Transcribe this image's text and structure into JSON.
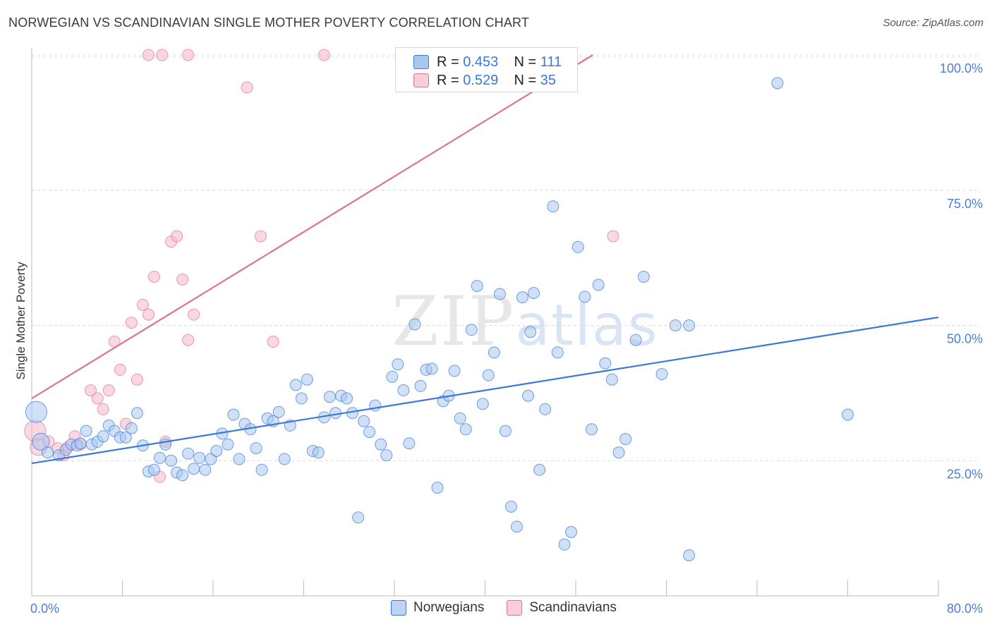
{
  "header": {
    "title": "NORWEGIAN VS SCANDINAVIAN SINGLE MOTHER POVERTY CORRELATION CHART",
    "source": "Source: ZipAtlas.com"
  },
  "colors": {
    "blue": "#3c78d8",
    "blue_fill": "#a9c6ef",
    "pink": "#e07097",
    "pink_fill": "#f5b8cb",
    "grid": "#dcdcdc",
    "tick_text": "#4a7fd4"
  },
  "legend": {
    "rows": [
      {
        "r_label": "R =",
        "r_value": "0.453",
        "n_label": "N =",
        "n_value": "111"
      },
      {
        "r_label": "R =",
        "r_value": "0.529",
        "n_label": "N =",
        "n_value": "35"
      }
    ],
    "bottom": [
      "Norwegians",
      "Scandinavians"
    ]
  },
  "watermark": {
    "zip": "ZIP",
    "atlas": "atlas"
  },
  "chart_data": {
    "type": "scatter",
    "title": "NORWEGIAN VS SCANDINAVIAN SINGLE MOTHER POVERTY CORRELATION CHART",
    "xlabel": "",
    "ylabel": "Single Mother Poverty",
    "xlim": [
      0,
      80
    ],
    "ylim": [
      0,
      100
    ],
    "x_tick_labels": [
      "0.0%",
      "80.0%"
    ],
    "y_tick_labels": [
      "100.0%",
      "75.0%",
      "50.0%",
      "25.0%"
    ],
    "y_tick_values": [
      100,
      75,
      50,
      25
    ],
    "series": [
      {
        "name": "Norwegians",
        "r": 0.453,
        "n": 111,
        "trend": {
          "x0": 0,
          "y0": 24.5,
          "x1": 80,
          "y1": 51.5
        },
        "points": [
          [
            0.4,
            34,
            "L"
          ],
          [
            0.8,
            28.5,
            "M"
          ],
          [
            1.4,
            26.5,
            "S"
          ],
          [
            2.4,
            26,
            "S"
          ],
          [
            3.0,
            27,
            "S"
          ],
          [
            3.5,
            28,
            "S"
          ],
          [
            4.0,
            27.8,
            "S"
          ],
          [
            4.3,
            28.2,
            "S"
          ],
          [
            4.8,
            30.5,
            "S"
          ],
          [
            5.3,
            28,
            "S"
          ],
          [
            5.8,
            28.5,
            "S"
          ],
          [
            6.3,
            29.5,
            "S"
          ],
          [
            6.8,
            31.5,
            "S"
          ],
          [
            7.3,
            30.5,
            "S"
          ],
          [
            7.8,
            29.3,
            "S"
          ],
          [
            8.3,
            29.3,
            "S"
          ],
          [
            8.8,
            31,
            "S"
          ],
          [
            9.3,
            33.8,
            "S"
          ],
          [
            9.8,
            27.8,
            "S"
          ],
          [
            10.3,
            23,
            "S"
          ],
          [
            10.8,
            23.3,
            "S"
          ],
          [
            11.3,
            25.5,
            "S"
          ],
          [
            11.8,
            28,
            "S"
          ],
          [
            12.3,
            25,
            "S"
          ],
          [
            12.8,
            22.8,
            "S"
          ],
          [
            13.3,
            22.3,
            "S"
          ],
          [
            13.8,
            26.3,
            "S"
          ],
          [
            14.3,
            23.5,
            "S"
          ],
          [
            14.8,
            25.5,
            "S"
          ],
          [
            15.3,
            23.3,
            "S"
          ],
          [
            15.8,
            25.3,
            "S"
          ],
          [
            16.3,
            26.8,
            "S"
          ],
          [
            16.8,
            30,
            "S"
          ],
          [
            17.3,
            28,
            "S"
          ],
          [
            17.8,
            33.5,
            "S"
          ],
          [
            18.3,
            25.3,
            "S"
          ],
          [
            18.8,
            31.8,
            "S"
          ],
          [
            19.3,
            30.8,
            "S"
          ],
          [
            19.8,
            27.3,
            "S"
          ],
          [
            20.3,
            23.3,
            "S"
          ],
          [
            20.8,
            32.8,
            "S"
          ],
          [
            21.3,
            32.3,
            "S"
          ],
          [
            21.8,
            34,
            "S"
          ],
          [
            22.3,
            25.3,
            "S"
          ],
          [
            22.8,
            31.5,
            "S"
          ],
          [
            23.3,
            39,
            "S"
          ],
          [
            23.8,
            36.5,
            "S"
          ],
          [
            24.3,
            40,
            "S"
          ],
          [
            24.8,
            26.8,
            "S"
          ],
          [
            25.3,
            26.5,
            "S"
          ],
          [
            25.8,
            33,
            "S"
          ],
          [
            26.3,
            36.8,
            "S"
          ],
          [
            26.8,
            33.8,
            "S"
          ],
          [
            27.3,
            37,
            "S"
          ],
          [
            27.8,
            36.5,
            "S"
          ],
          [
            28.3,
            33.8,
            "S"
          ],
          [
            28.8,
            14.5,
            "S"
          ],
          [
            29.3,
            32.3,
            "S"
          ],
          [
            29.8,
            30.3,
            "S"
          ],
          [
            30.3,
            35.2,
            "S"
          ],
          [
            30.8,
            28,
            "S"
          ],
          [
            31.3,
            26,
            "S"
          ],
          [
            31.8,
            40.5,
            "S"
          ],
          [
            32.3,
            42.8,
            "S"
          ],
          [
            32.8,
            38,
            "S"
          ],
          [
            33.3,
            28.2,
            "S"
          ],
          [
            33.8,
            50.2,
            "S"
          ],
          [
            34.3,
            38.8,
            "S"
          ],
          [
            34.8,
            41.8,
            "S"
          ],
          [
            35.3,
            42,
            "S"
          ],
          [
            35.8,
            20,
            "S"
          ],
          [
            36.3,
            36,
            "S"
          ],
          [
            36.8,
            37,
            "S"
          ],
          [
            37.3,
            41.6,
            "S"
          ],
          [
            37.8,
            32.8,
            "S"
          ],
          [
            38.3,
            30.8,
            "S"
          ],
          [
            38.8,
            49.2,
            "S"
          ],
          [
            39.3,
            57.3,
            "S"
          ],
          [
            39.8,
            35.5,
            "S"
          ],
          [
            40.3,
            40.8,
            "S"
          ],
          [
            40.8,
            45,
            "S"
          ],
          [
            41.3,
            55.8,
            "S"
          ],
          [
            41.8,
            30.5,
            "S"
          ],
          [
            42.3,
            16.5,
            "S"
          ],
          [
            42.8,
            12.8,
            "S"
          ],
          [
            43.3,
            55.2,
            "S"
          ],
          [
            43.8,
            37,
            "S"
          ],
          [
            44.3,
            56,
            "S"
          ],
          [
            44.8,
            23.3,
            "S"
          ],
          [
            45.3,
            34.5,
            "S"
          ],
          [
            46.0,
            72,
            "S"
          ],
          [
            46.4,
            45,
            "S"
          ],
          [
            47.0,
            9.5,
            "S"
          ],
          [
            47.6,
            11.8,
            "S"
          ],
          [
            48.2,
            64.5,
            "S"
          ],
          [
            48.8,
            55.3,
            "S"
          ],
          [
            49.4,
            30.8,
            "S"
          ],
          [
            50.0,
            57.5,
            "S"
          ],
          [
            50.6,
            43,
            "S"
          ],
          [
            51.2,
            40,
            "S"
          ],
          [
            51.8,
            26.5,
            "S"
          ],
          [
            52.4,
            29,
            "S"
          ],
          [
            53.3,
            47.3,
            "S"
          ],
          [
            54.0,
            59,
            "S"
          ],
          [
            55.6,
            41,
            "S"
          ],
          [
            56.8,
            50,
            "S"
          ],
          [
            58.0,
            50,
            "S"
          ],
          [
            58.0,
            7.5,
            "S"
          ],
          [
            65.8,
            94.8,
            "S"
          ],
          [
            72.0,
            33.5,
            "S"
          ],
          [
            44.0,
            48.8,
            "S"
          ]
        ]
      },
      {
        "name": "Scandinavians",
        "r": 0.529,
        "n": 35,
        "trend": {
          "x0": 0,
          "y0": 36.5,
          "x1": 49.5,
          "y1": 100
        },
        "points": [
          [
            0.3,
            30.5,
            "L"
          ],
          [
            0.6,
            27.5,
            "M"
          ],
          [
            1.5,
            28.5,
            "S"
          ],
          [
            2.3,
            27.3,
            "S"
          ],
          [
            2.8,
            26,
            "S"
          ],
          [
            3.2,
            27.5,
            "S"
          ],
          [
            3.8,
            29.5,
            "S"
          ],
          [
            4.3,
            28,
            "S"
          ],
          [
            5.2,
            38,
            "S"
          ],
          [
            5.8,
            36.5,
            "S"
          ],
          [
            6.3,
            34.5,
            "S"
          ],
          [
            6.8,
            38,
            "S"
          ],
          [
            7.3,
            47,
            "S"
          ],
          [
            7.8,
            41.8,
            "S"
          ],
          [
            8.3,
            31.8,
            "S"
          ],
          [
            8.8,
            50.5,
            "S"
          ],
          [
            9.3,
            40,
            "S"
          ],
          [
            9.8,
            53.8,
            "S"
          ],
          [
            10.3,
            52,
            "S"
          ],
          [
            10.8,
            59,
            "S"
          ],
          [
            11.3,
            22,
            "S"
          ],
          [
            11.8,
            28.5,
            "S"
          ],
          [
            12.3,
            65.5,
            "S"
          ],
          [
            12.8,
            66.5,
            "S"
          ],
          [
            13.3,
            58.5,
            "S"
          ],
          [
            13.8,
            47.3,
            "S"
          ],
          [
            14.3,
            52,
            "S"
          ],
          [
            10.3,
            100,
            "S"
          ],
          [
            11.5,
            100,
            "S"
          ],
          [
            13.8,
            100,
            "S"
          ],
          [
            25.8,
            100,
            "S"
          ],
          [
            19.0,
            94,
            "S"
          ],
          [
            20.2,
            66.5,
            "S"
          ],
          [
            21.3,
            47,
            "S"
          ],
          [
            51.3,
            66.5,
            "S"
          ]
        ]
      }
    ]
  }
}
